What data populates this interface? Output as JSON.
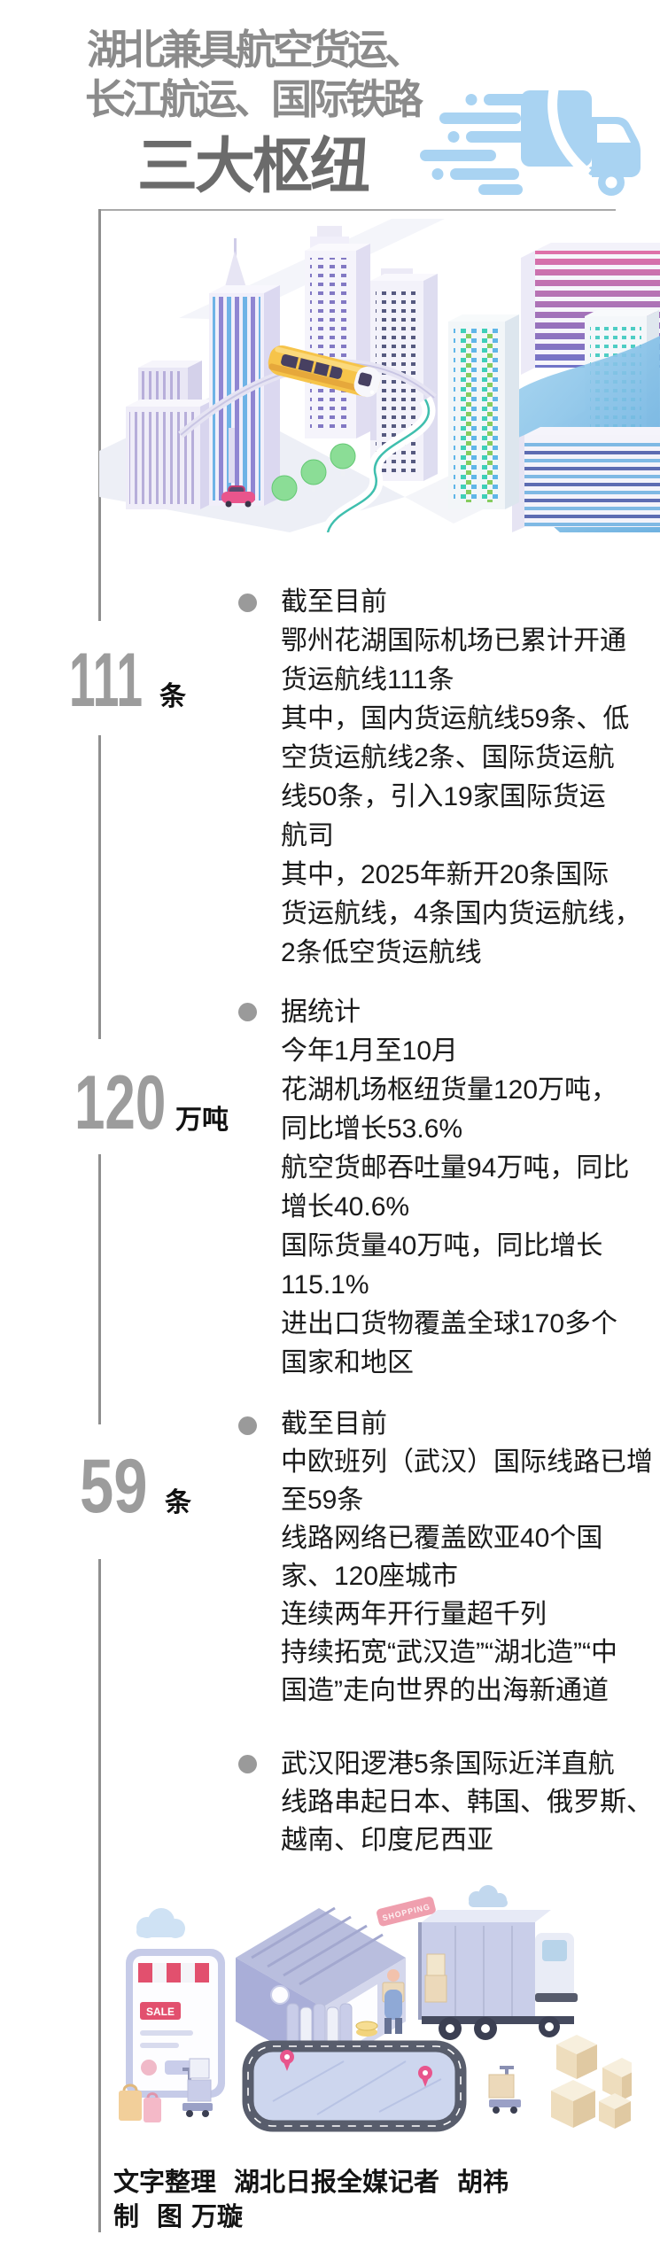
{
  "colors": {
    "accent_blue": "#a9d3f2",
    "title_gray": "#8b8b8b",
    "emphasis_gray": "#6b6b6b",
    "stat_number_gray": "#9c9c9c",
    "body_text": "#1a1a1a",
    "timeline_gray": "#8f8f8f"
  },
  "header": {
    "title_line1": "湖北兼具航空货运、",
    "title_line2": "长江航运、国际铁路",
    "title_line3": "三大枢纽",
    "truck_icon": "speeding-truck-icon"
  },
  "hero": {
    "illustration": "isometric-city-monorail-scene"
  },
  "sections": [
    {
      "stat_value": "111",
      "stat_unit": "条",
      "heading": "截至目前",
      "lines": [
        "鄂州花湖国际机场已累计开通",
        "货运航线111条",
        "其中，国内货运航线59条、低",
        "空货运航线2条、国际货运航",
        "线50条，引入19家国际货运",
        "航司",
        "其中，2025年新开20条国际",
        "货运航线，4条国内货运航线，",
        "2条低空货运航线"
      ]
    },
    {
      "stat_value": "120",
      "stat_unit": "万吨",
      "heading": "据统计",
      "lines": [
        "今年1月至10月",
        "花湖机场枢纽货量120万吨，",
        "同比增长53.6%",
        "航空货邮吞吐量94万吨，同比",
        "增长40.6%",
        "国际货量40万吨，同比增长",
        "115.1%",
        "进出口货物覆盖全球170多个",
        "国家和地区"
      ]
    },
    {
      "stat_value": "59",
      "stat_unit": "条",
      "heading": "截至目前",
      "lines": [
        "中欧班列（武汉）国际线路已增",
        "至59条",
        "线路网络已覆盖欧亚40个国",
        "家、120座城市",
        "连续两年开行量超千列",
        "持续拓宽“武汉造”“湖北造”“中",
        "国造”走向世界的出海新通道"
      ]
    },
    {
      "lines": [
        "武汉阳逻港5条国际近洋直航",
        "线路串起日本、韩国、俄罗斯、",
        "越南、印度尼西亚"
      ]
    }
  ],
  "footer_illustration": {
    "name": "isometric-logistics-warehouse-truck-scene",
    "sale_label": "SALE",
    "shopping_label": "SHOPPING"
  },
  "credits": {
    "role1": "文字整理",
    "agency": "湖北日报全媒记者",
    "name1": "胡祎",
    "role2_left": "制",
    "role2_right": "图",
    "name2": "万璇"
  }
}
